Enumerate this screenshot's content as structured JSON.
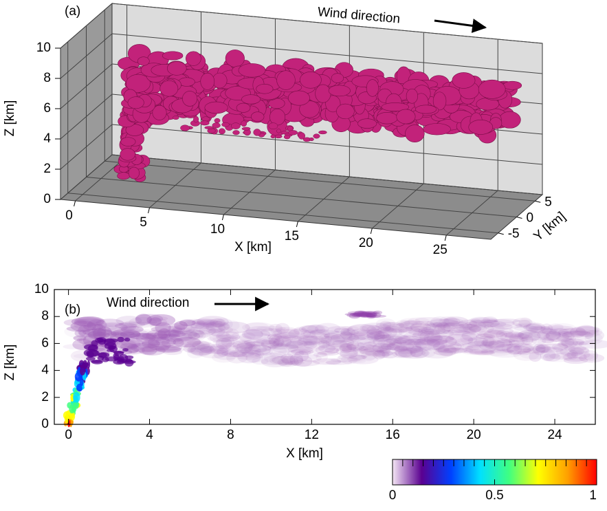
{
  "chart_data": [
    {
      "type": "surface3d",
      "label": "(a)",
      "annotation": "Wind direction",
      "xlabel": "X [km]",
      "ylabel": "Y [km]",
      "zlabel": "Z [km]",
      "xlim": [
        -1,
        28
      ],
      "ylim": [
        -7,
        7
      ],
      "zlim": [
        0,
        10
      ],
      "xticks": [
        0,
        5,
        10,
        15,
        20,
        25
      ],
      "yticks": [
        -5,
        0,
        5
      ],
      "zticks": [
        0,
        2,
        4,
        6,
        8,
        10
      ],
      "color": "#c2227a"
    },
    {
      "type": "contour",
      "label": "(b)",
      "annotation": "Wind direction",
      "xlabel": "X [km]",
      "ylabel": "Z [km]",
      "xlim": [
        -0.7,
        26
      ],
      "ylim": [
        0,
        10
      ],
      "xticks": [
        0,
        4,
        8,
        12,
        16,
        20,
        24
      ],
      "yticks": [
        0,
        2,
        4,
        6,
        8,
        10
      ],
      "colorbar": {
        "lim": [
          0,
          1
        ],
        "ticks": [
          0,
          0.5,
          1
        ],
        "colors": [
          "#f4e6f4",
          "#5a0090",
          "#0040ff",
          "#00e0ff",
          "#40ff80",
          "#ffff00",
          "#ffa000",
          "#ff0000"
        ]
      }
    }
  ]
}
